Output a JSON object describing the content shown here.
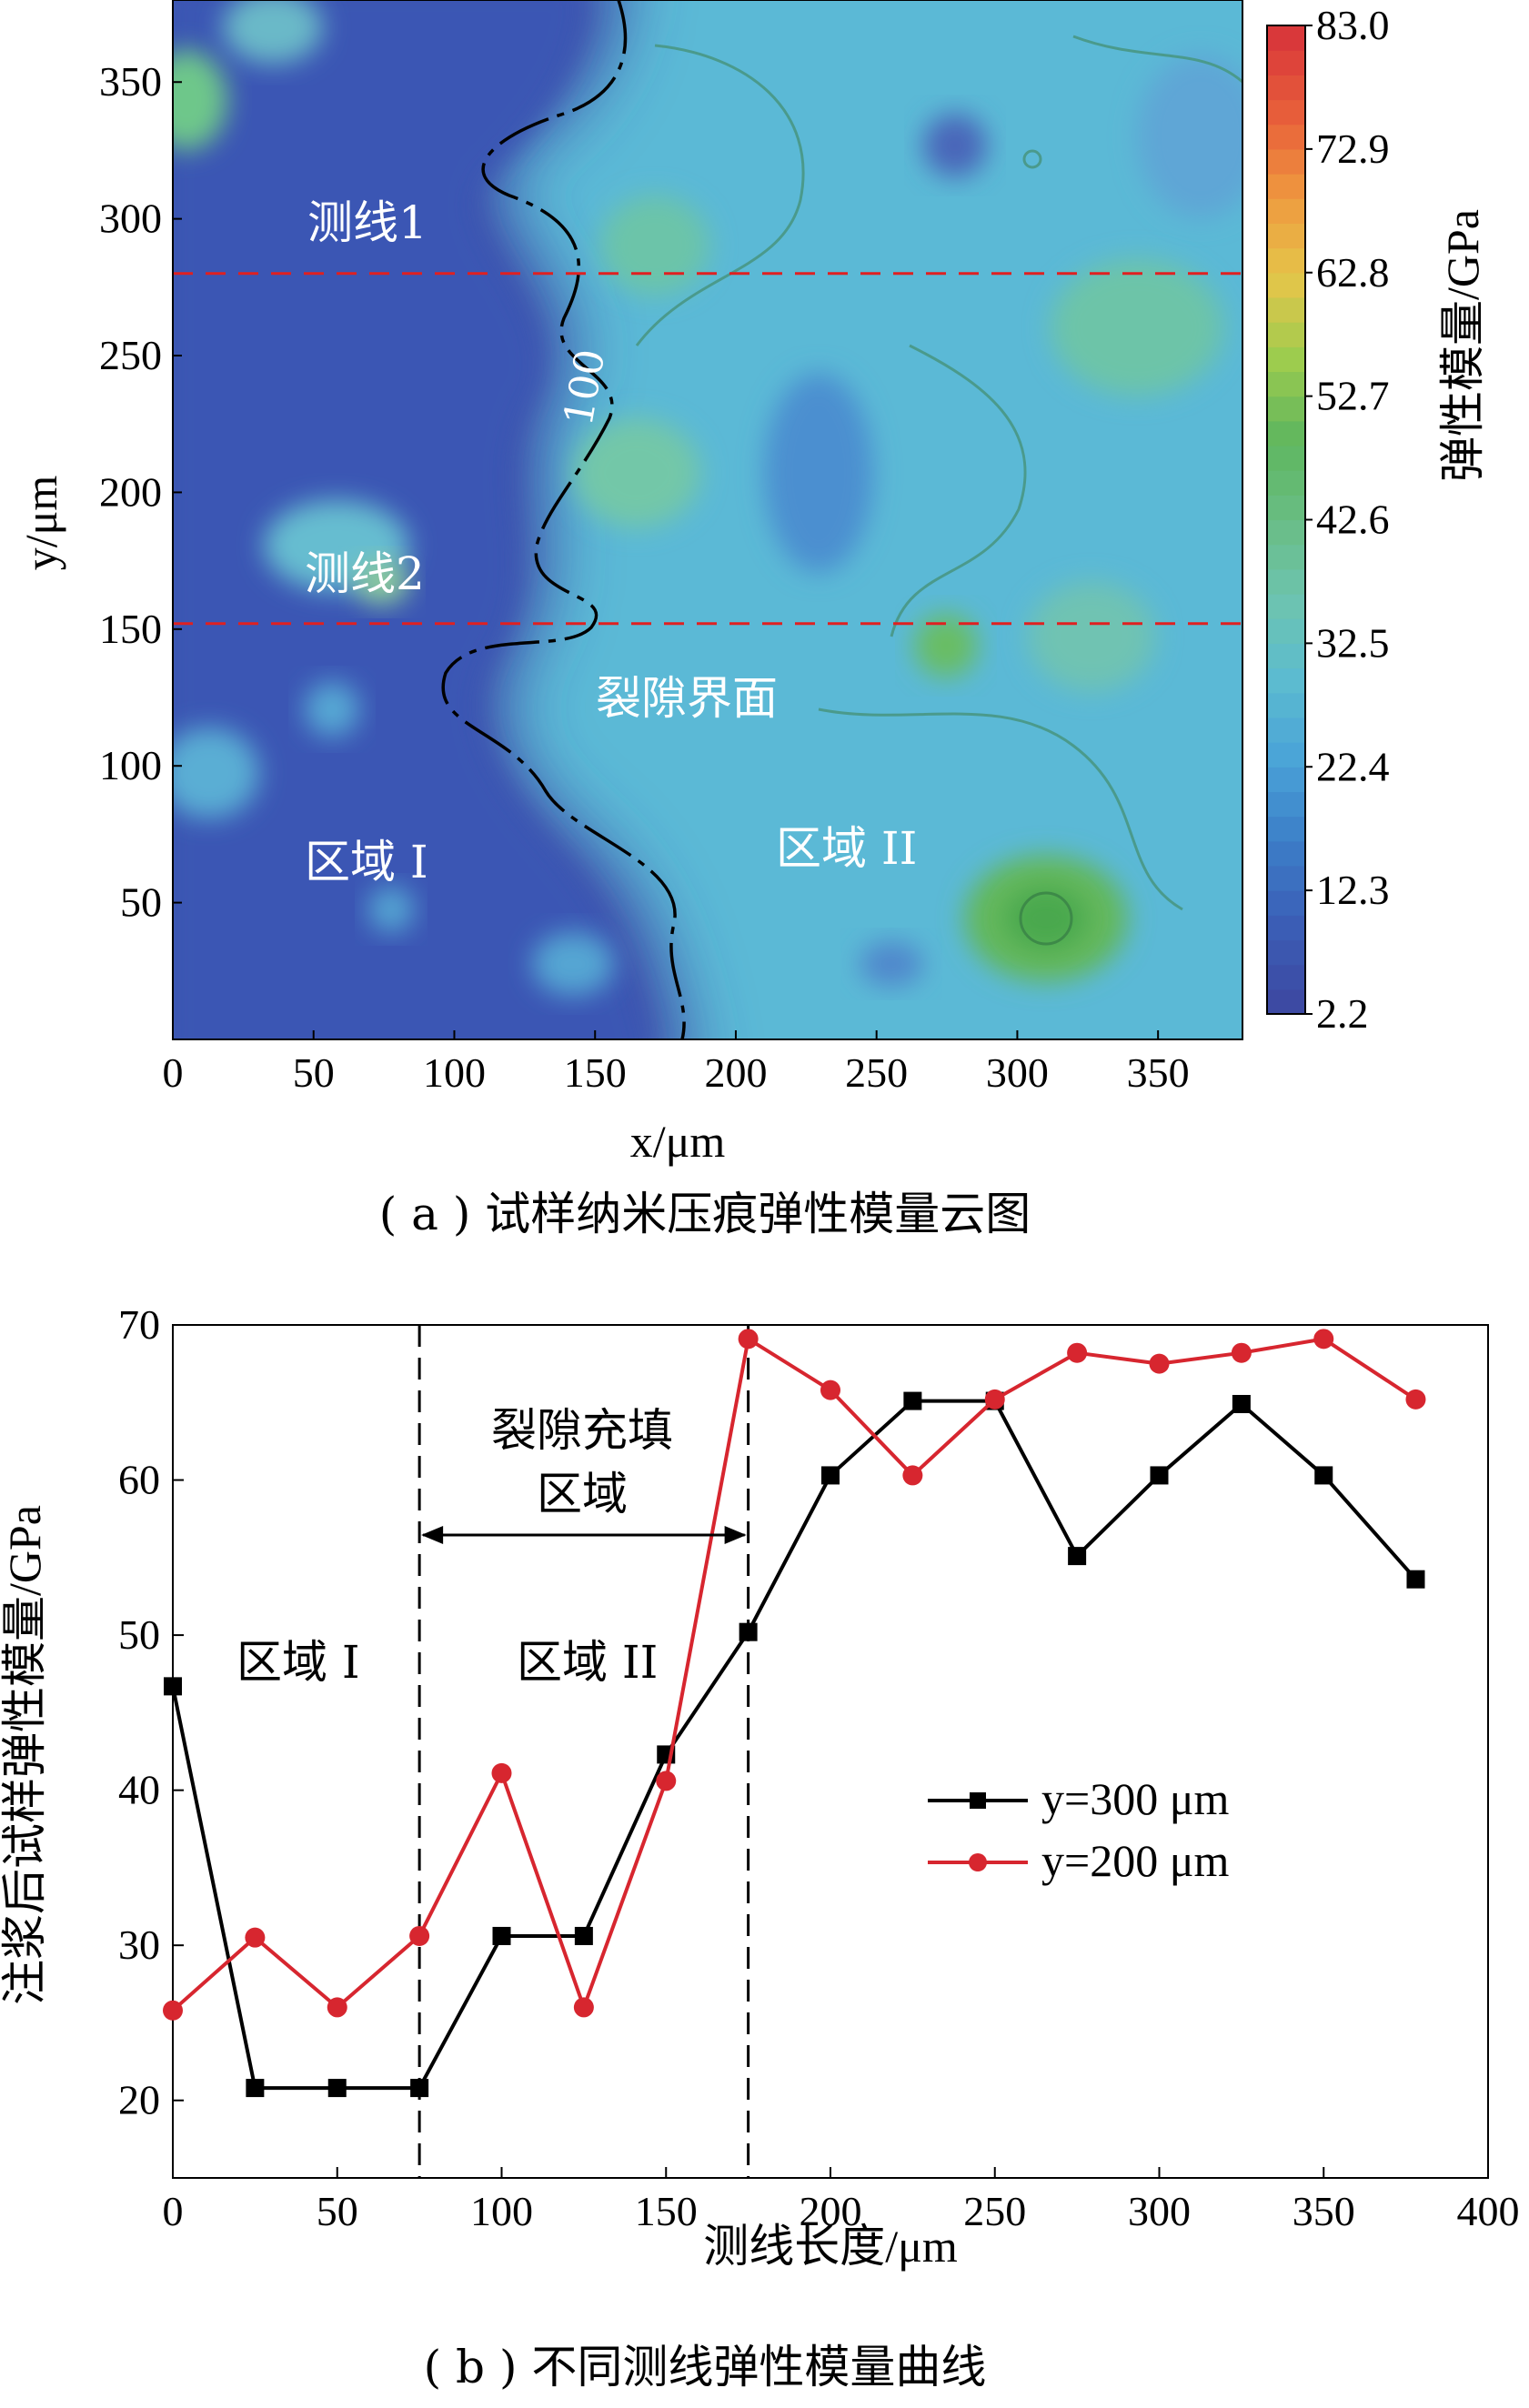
{
  "chart_data": [
    {
      "type": "heatmap",
      "caption": "( a ) 试样纳米压痕弹性模量云图",
      "xlabel": "x/μm",
      "ylabel": "y/μm",
      "xlim": [
        0,
        380
      ],
      "ylim": [
        0,
        380
      ],
      "x_ticks": [
        "0",
        "50",
        "100",
        "150",
        "200",
        "250",
        "300",
        "350"
      ],
      "y_ticks": [
        "50",
        "100",
        "150",
        "200",
        "250",
        "300",
        "350"
      ],
      "colorbar": {
        "label": "弹性模量/GPa",
        "ticks": [
          "2.2",
          "12.3",
          "22.4",
          "32.5",
          "42.6",
          "52.7",
          "62.8",
          "72.9",
          "83.0"
        ],
        "range": [
          2.2,
          83.0
        ],
        "colors": [
          "#3d4aa3",
          "#3b5fb7",
          "#3c7ec8",
          "#4aa3d8",
          "#5cbbd0",
          "#6dc4b0",
          "#69bd84",
          "#5fb65e",
          "#9dcc4e",
          "#e4c64a",
          "#ef9a3f",
          "#e8603a",
          "#d9383a"
        ]
      },
      "contour_label": "100",
      "annotations": {
        "line1": "测线1",
        "line2": "测线2",
        "interface": "裂隙界面",
        "region1": "区域 I",
        "region2": "区域 II"
      },
      "dashed_lines_y": [
        280,
        152
      ],
      "zones": [
        {
          "region": "区域 I",
          "modulus": "low (≈2–15 GPa)"
        },
        {
          "region": "区域 II",
          "modulus": "medium (≈20–45 GPa)"
        }
      ]
    },
    {
      "type": "line",
      "caption": "( b ) 不同测线弹性模量曲线",
      "xlabel": "测线长度/μm",
      "ylabel": "注浆后试样弹性模量/GPa",
      "xlim": [
        0,
        400
      ],
      "ylim": [
        15,
        70
      ],
      "x_ticks": [
        "0",
        "50",
        "100",
        "150",
        "200",
        "250",
        "300",
        "350",
        "400"
      ],
      "y_ticks": [
        "20",
        "30",
        "40",
        "50",
        "60",
        "70"
      ],
      "series": [
        {
          "name": "y=300 μm",
          "color": "#000000",
          "marker": "square",
          "x": [
            0,
            25,
            50,
            75,
            100,
            125,
            150,
            175,
            200,
            225,
            250,
            275,
            300,
            325,
            350,
            378
          ],
          "y": [
            46.7,
            20.8,
            20.8,
            20.8,
            30.6,
            30.6,
            42.3,
            50.2,
            60.3,
            65.1,
            65.1,
            55.1,
            60.3,
            64.9,
            60.3,
            53.6
          ]
        },
        {
          "name": "y=200 μm",
          "color": "#d7262f",
          "marker": "circle",
          "x": [
            0,
            25,
            50,
            75,
            100,
            125,
            150,
            175,
            200,
            225,
            250,
            275,
            300,
            325,
            350,
            378
          ],
          "y": [
            25.8,
            30.5,
            26.0,
            30.6,
            41.1,
            26.0,
            40.6,
            69.1,
            65.8,
            60.3,
            65.2,
            68.2,
            67.5,
            68.2,
            69.1,
            65.2
          ]
        }
      ],
      "vlines_x": [
        75,
        175
      ],
      "annotations": {
        "fill_zone_line1": "裂隙充填",
        "fill_zone_line2": "区域",
        "region1": "区域 I",
        "region2": "区域 II"
      },
      "legend_position": "middle-right"
    }
  ]
}
